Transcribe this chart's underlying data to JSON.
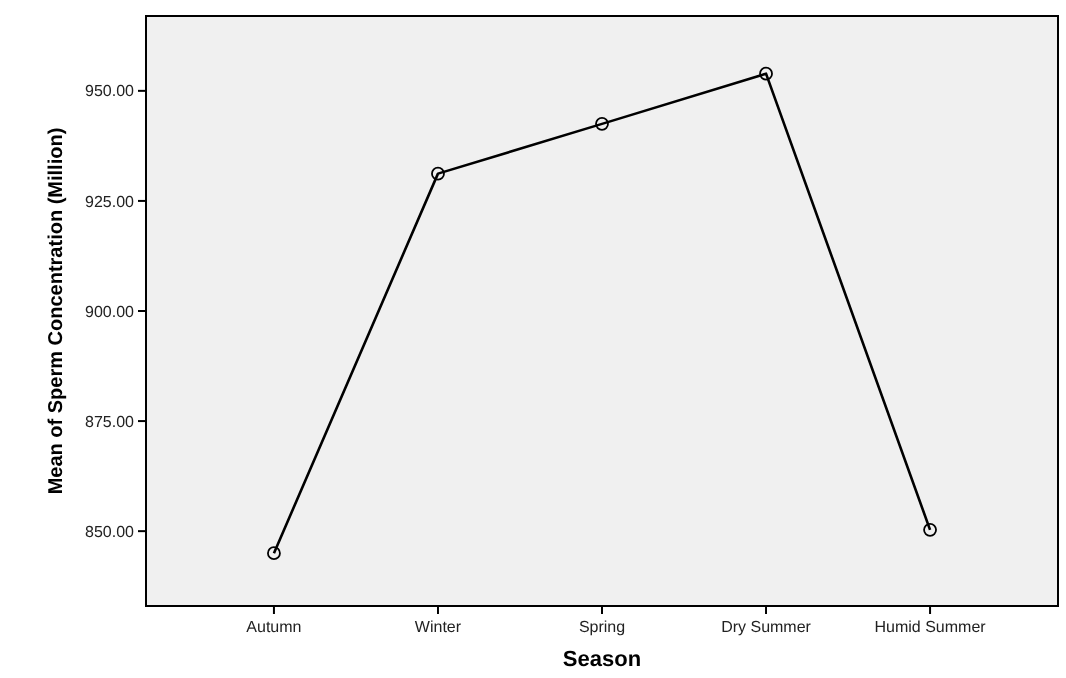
{
  "chart_data": {
    "type": "line",
    "xlabel": "Season",
    "ylabel": "Mean of Sperm Concentration (Million)",
    "categories": [
      "Autumn",
      "Winter",
      "Spring",
      "Dry Summer",
      "Humid Summer"
    ],
    "series": [
      {
        "color": "#000000",
        "values": [
          845.0,
          931.2,
          942.5,
          953.9,
          850.3
        ]
      }
    ],
    "ylim": [
      833,
      967
    ],
    "yticks": [
      {
        "value": 850,
        "label": "850.00"
      },
      {
        "value": 875,
        "label": "875.00"
      },
      {
        "value": 900,
        "label": "900.00"
      },
      {
        "value": 925,
        "label": "925.00"
      },
      {
        "value": 950,
        "label": "950.00"
      }
    ],
    "marker": "circle",
    "grid": false
  }
}
